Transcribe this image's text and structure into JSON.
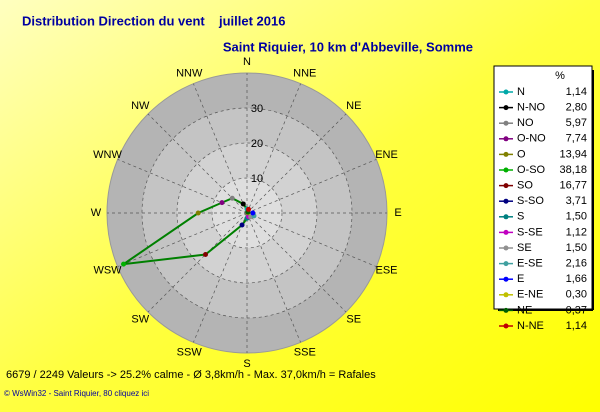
{
  "chart_data": {
    "type": "radar",
    "title": "Distribution Direction du vent",
    "period": "juillet 2016",
    "subtitle": "Saint Riquier, 10 km d'Abbeville, Somme",
    "directions": [
      "N",
      "NNE",
      "NE",
      "ENE",
      "E",
      "ESE",
      "SE",
      "SSE",
      "S",
      "SSW",
      "SW",
      "WSW",
      "W",
      "WNW",
      "NW",
      "NNW"
    ],
    "legend_header": "%",
    "categories": [
      "N",
      "N-NO",
      "NO",
      "O-NO",
      "O",
      "O-SO",
      "SO",
      "S-SO",
      "S",
      "S-SE",
      "SE",
      "E-SE",
      "E",
      "E-NE",
      "NE",
      "N-NE"
    ],
    "values": [
      1.14,
      2.8,
      5.97,
      7.74,
      13.94,
      38.18,
      16.77,
      3.71,
      1.5,
      1.12,
      1.5,
      2.16,
      1.66,
      0.3,
      0.37,
      1.14
    ],
    "value_labels": [
      "1,14",
      "2,80",
      "5,97",
      "7,74",
      "13,94",
      "38,18",
      "16,77",
      "3,71",
      "1,50",
      "1,12",
      "1,50",
      "2,16",
      "1,66",
      "0,30",
      "0,37",
      "1,14"
    ],
    "colors": [
      "#00a8a8",
      "#000000",
      "#808080",
      "#800080",
      "#808000",
      "#00b000",
      "#800000",
      "#000080",
      "#008080",
      "#c000c0",
      "#909090",
      "#40a0a0",
      "#0000ff",
      "#c0c000",
      "#006000",
      "#c00000"
    ],
    "line_color": "#008000",
    "rlim": [
      0,
      40
    ],
    "rticks": [
      10,
      20,
      30
    ],
    "grid": true,
    "footer": "6679 / 2249 Valeurs  -> 25.2% calme   -   Ø 3,8km/h   -   Max. 37,0km/h = Rafales",
    "credit": "© WsWin32  -  Saint Riquier, 80 cliquez ici"
  }
}
